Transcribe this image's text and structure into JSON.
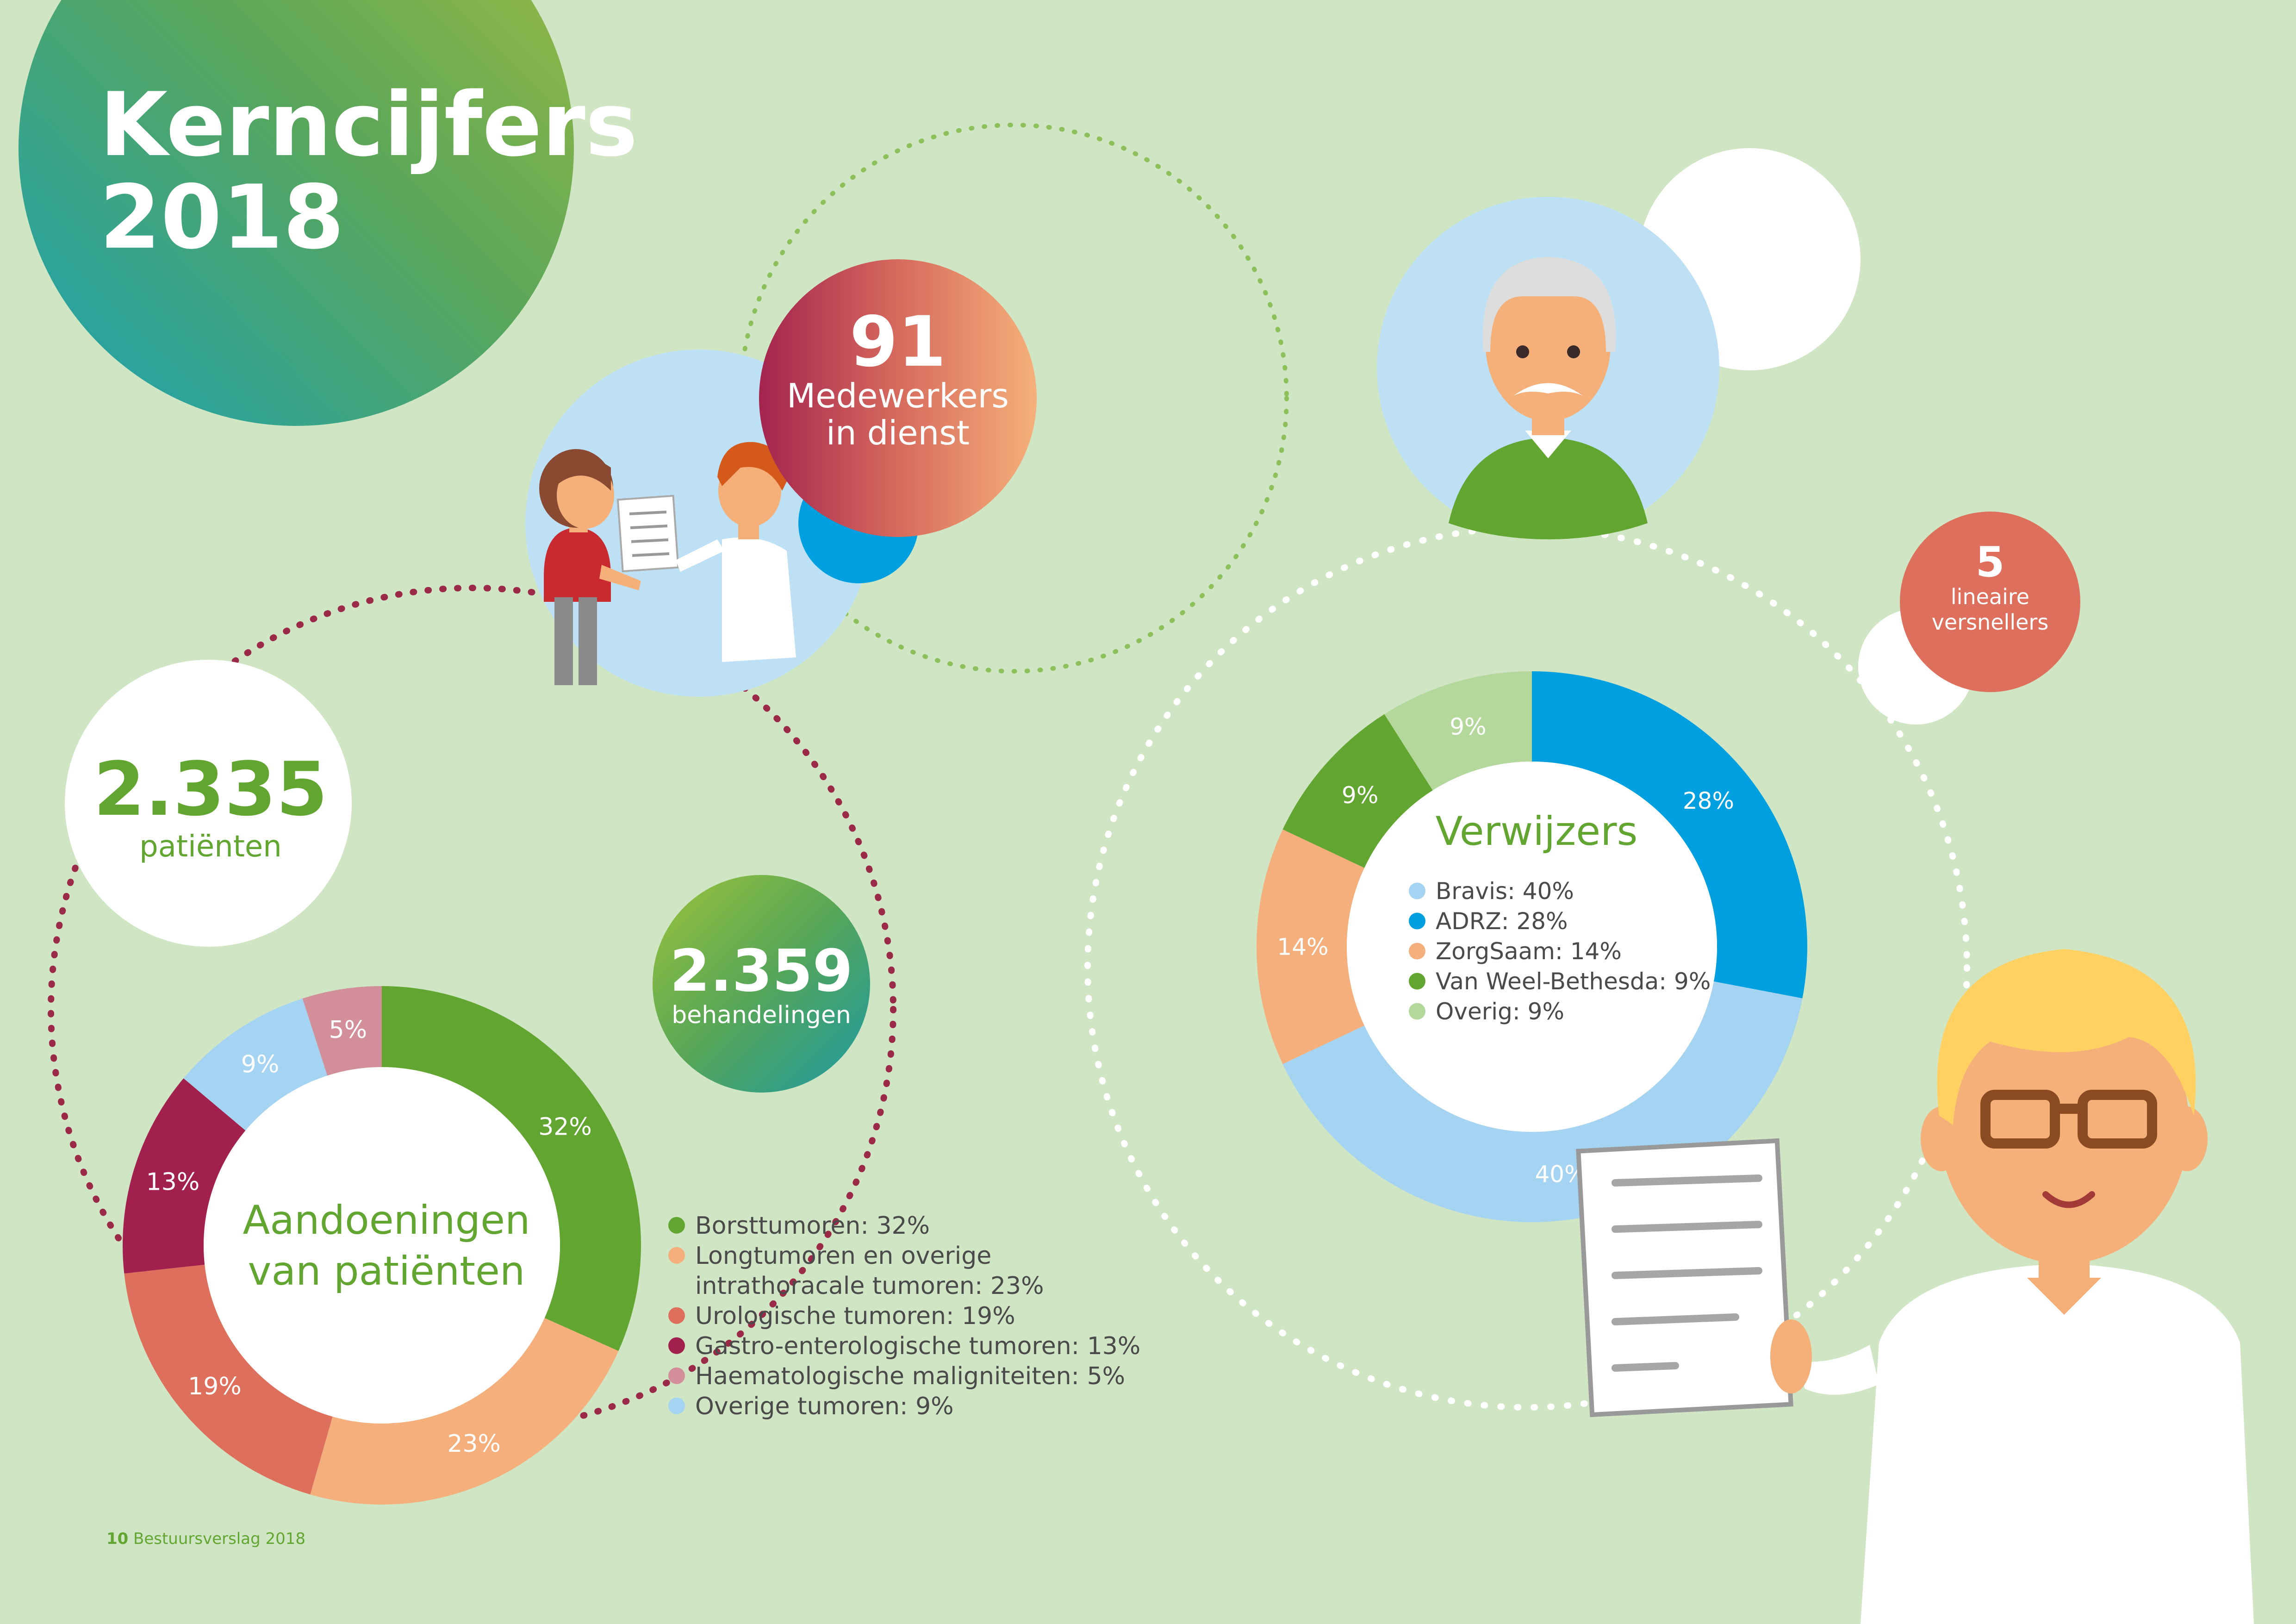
{
  "title_line1": "Kerncijfers",
  "title_line2": "2018",
  "footer": {
    "page": "10",
    "text": "Bestuursverslag 2018"
  },
  "staff": {
    "number": "91",
    "line1": "Medewerkers",
    "line2": "in dienst"
  },
  "patients": {
    "number": "2.335",
    "label": "patiënten"
  },
  "treatments": {
    "number": "2.359",
    "label": "behandelingen"
  },
  "accelerators": {
    "number": "5",
    "line1": "lineaire",
    "line2": "versnellers"
  },
  "colors": {
    "background": "#cfe5c4",
    "green": "#62a631",
    "orange": "#f5af7c",
    "red": "#de6f5c",
    "maroon": "#a2204e",
    "pink": "#d28f9a",
    "lightblue": "#a5d4f3",
    "blue": "#009fe0",
    "paleGreen": "#b4d79b"
  },
  "chart_data": [
    {
      "type": "pie",
      "title_line1": "Aandoeningen",
      "title_line2": "van patiënten",
      "slices": [
        {
          "name": "Borsttumoren",
          "value": 32,
          "label": "32%",
          "color": "#62a631"
        },
        {
          "name": "Longtumoren en overige intrathoracale tumoren",
          "value": 23,
          "label": "23%",
          "color": "#f5af7c"
        },
        {
          "name": "Urologische tumoren",
          "value": 19,
          "label": "19%",
          "color": "#de6f5c"
        },
        {
          "name": "Gastro-enterologische tumoren",
          "value": 13,
          "label": "13%",
          "color": "#a2204e"
        },
        {
          "name": "Overige tumoren",
          "value": 9,
          "label": "9%",
          "color": "#a5d4f3"
        },
        {
          "name": "Haematologische maligniteiten",
          "value": 5,
          "label": "5%",
          "color": "#d28f9a"
        }
      ],
      "legend": [
        {
          "text": "Borsttumoren: 32%",
          "color": "#62a631"
        },
        {
          "text": "Longtumoren en overige",
          "text2": "intrathoracale tumoren: 23%",
          "color": "#f5af7c"
        },
        {
          "text": "Urologische tumoren: 19%",
          "color": "#de6f5c"
        },
        {
          "text": "Gastro-enterologische tumoren: 13%",
          "color": "#a2204e"
        },
        {
          "text": "Haematologische maligniteiten: 5%",
          "color": "#d28f9a"
        },
        {
          "text": "Overige tumoren: 9%",
          "color": "#a5d4f3"
        }
      ]
    },
    {
      "type": "pie",
      "title": "Verwijzers",
      "slices": [
        {
          "name": "ADRZ",
          "value": 28,
          "label": "28%",
          "color": "#009fe0"
        },
        {
          "name": "Bravis",
          "value": 40,
          "label": "40%",
          "color": "#a5d4f3"
        },
        {
          "name": "ZorgSaam",
          "value": 14,
          "label": "14%",
          "color": "#f5af7c"
        },
        {
          "name": "Van Weel-Bethesda",
          "value": 9,
          "label": "9%",
          "color": "#62a631"
        },
        {
          "name": "Overig",
          "value": 9,
          "label": "9%",
          "color": "#b4d79b"
        }
      ],
      "legend": [
        {
          "text": "Bravis: 40%",
          "color": "#a5d4f3"
        },
        {
          "text": "ADRZ: 28%",
          "color": "#009fe0"
        },
        {
          "text": "ZorgSaam: 14%",
          "color": "#f5af7c"
        },
        {
          "text": "Van Weel-Bethesda: 9%",
          "color": "#62a631"
        },
        {
          "text": "Overig: 9%",
          "color": "#b4d79b"
        }
      ]
    }
  ]
}
